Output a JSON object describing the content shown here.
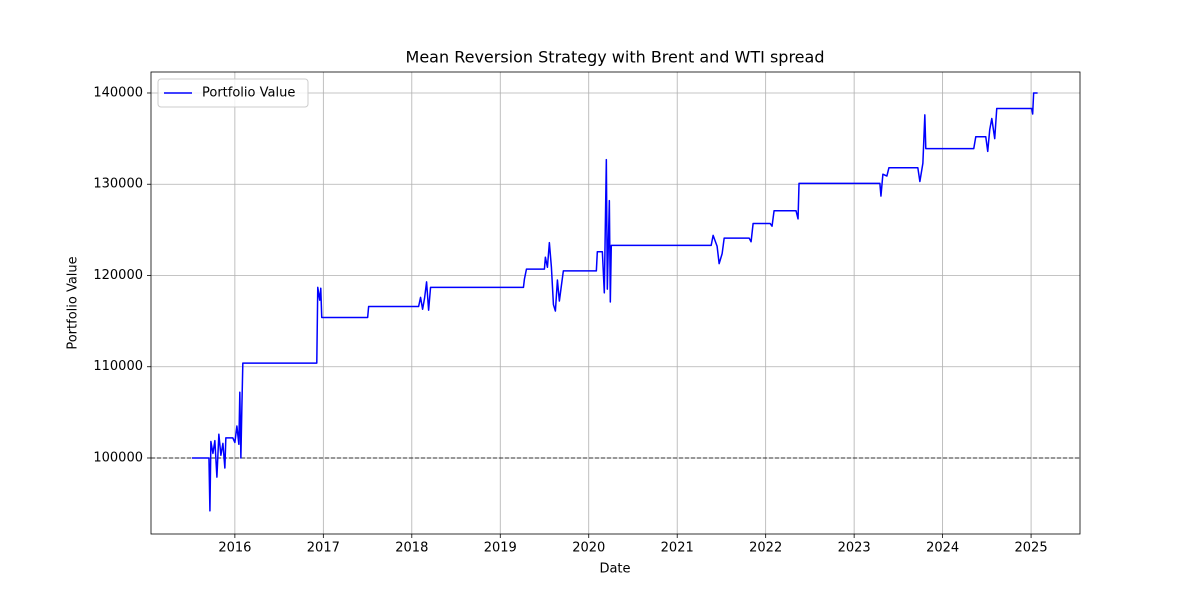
{
  "chart_data": {
    "type": "line",
    "title": "Mean Reversion Strategy with Brent and WTI spread",
    "x_label": "Date",
    "y_label": "Portfolio Value",
    "x": [
      2015.515,
      2015.707,
      2015.718,
      2015.729,
      2015.752,
      2015.774,
      2015.797,
      2015.819,
      2015.842,
      2015.865,
      2015.887,
      2015.898,
      2015.977,
      2016.0,
      2016.023,
      2016.045,
      2016.056,
      2016.068,
      2016.079,
      2016.09,
      2016.926,
      2016.937,
      2016.959,
      2016.971,
      2016.982,
      2017.501,
      2017.512,
      2018.077,
      2018.099,
      2018.122,
      2018.144,
      2018.167,
      2018.19,
      2018.212,
      2019.262,
      2019.273,
      2019.296,
      2019.499,
      2019.51,
      2019.533,
      2019.555,
      2019.578,
      2019.601,
      2019.623,
      2019.646,
      2019.668,
      2019.691,
      2019.713,
      2020.086,
      2020.097,
      2020.154,
      2020.176,
      2020.199,
      2020.21,
      2020.233,
      2020.244,
      2020.255,
      2021.384,
      2021.406,
      2021.451,
      2021.474,
      2021.508,
      2021.531,
      2021.813,
      2021.835,
      2021.858,
      2022.05,
      2022.072,
      2022.095,
      2022.343,
      2022.366,
      2022.377,
      2023.291,
      2023.303,
      2023.325,
      2023.37,
      2023.393,
      2023.72,
      2023.743,
      2023.777,
      2023.799,
      2023.81,
      2024.352,
      2024.375,
      2024.488,
      2024.51,
      2024.533,
      2024.556,
      2024.589,
      2024.612,
      2025.007,
      2025.018,
      2025.029,
      2025.074
    ],
    "series": [
      {
        "name": "Portfolio Value",
        "color": "#0000ff",
        "values": [
          100000,
          100000,
          94200,
          101800,
          100500,
          101900,
          97900,
          102600,
          100300,
          101600,
          98900,
          102200,
          102200,
          101700,
          103500,
          101500,
          107200,
          100000,
          105500,
          110400,
          110400,
          118700,
          117300,
          118600,
          115400,
          115400,
          116600,
          116600,
          117600,
          116300,
          117500,
          119300,
          116200,
          118700,
          118700,
          119600,
          120700,
          120700,
          122000,
          120900,
          123600,
          120900,
          116800,
          116100,
          119500,
          117200,
          118900,
          120500,
          120500,
          122600,
          122600,
          118100,
          132700,
          118500,
          128200,
          117100,
          123300,
          123300,
          124400,
          123200,
          121300,
          122400,
          124100,
          124100,
          123700,
          125700,
          125700,
          125400,
          127100,
          127100,
          126200,
          130100,
          130100,
          128700,
          131100,
          130900,
          131800,
          131800,
          130300,
          132300,
          137600,
          133900,
          133900,
          135200,
          135200,
          133600,
          136000,
          137200,
          135000,
          138300,
          138300,
          137700,
          140000,
          140000
        ]
      }
    ],
    "hline": 100000,
    "xlim": [
      2015.052,
      2025.553
    ],
    "xticks": [
      2016,
      2017,
      2018,
      2019,
      2020,
      2021,
      2022,
      2023,
      2024,
      2025
    ],
    "ylim": [
      91670,
      142300
    ],
    "yticks": [
      100000,
      110000,
      120000,
      130000,
      140000
    ],
    "grid": true,
    "legend": "upper left"
  }
}
